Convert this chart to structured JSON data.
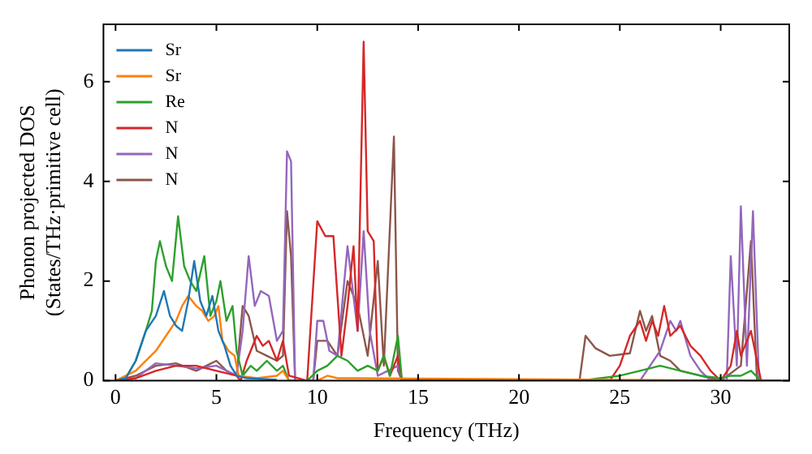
{
  "chart_data": {
    "type": "line",
    "xlabel": "Frequency (THz)",
    "ylabel": "Phonon projected DOS\n(States/THz·primitive cell)",
    "xlim": [
      -0.6,
      33.4
    ],
    "ylim": [
      0,
      7.15
    ],
    "xticks": [
      0,
      5,
      10,
      15,
      20,
      25,
      30
    ],
    "yticks": [
      0,
      2,
      4,
      6
    ],
    "grid": false,
    "legend": "top left",
    "marker": "none",
    "line_style": "solid",
    "series": [
      {
        "name": "Sr",
        "color": "#1f77b4",
        "x": [
          0,
          0.5,
          1,
          1.5,
          2,
          2.4,
          2.7,
          3,
          3.3,
          3.6,
          3.9,
          4.2,
          4.5,
          4.8,
          5.1,
          5.4,
          5.7,
          6,
          6.5,
          8
        ],
        "values": [
          0,
          0.05,
          0.4,
          1.0,
          1.3,
          1.8,
          1.3,
          1.1,
          1.0,
          1.6,
          2.4,
          1.6,
          1.3,
          1.7,
          1.0,
          0.7,
          0.3,
          0.1,
          0.05,
          0.02
        ]
      },
      {
        "name": "Sr",
        "color": "#ff7f0e",
        "x": [
          0,
          1,
          2,
          2.5,
          3,
          3.3,
          3.6,
          4,
          4.3,
          4.6,
          4.9,
          5.1,
          5.3,
          5.6,
          5.9,
          6.1,
          7,
          8,
          8.3,
          8.6,
          10,
          10.5,
          11,
          12,
          33
        ],
        "values": [
          0,
          0.2,
          0.6,
          0.9,
          1.2,
          1.5,
          1.7,
          1.5,
          1.4,
          1.2,
          1.3,
          1.5,
          0.8,
          0.6,
          0.5,
          0.1,
          0.05,
          0.1,
          0.2,
          0,
          0,
          0.1,
          0.05,
          0.05,
          0
        ]
      },
      {
        "name": "Re",
        "color": "#2ca02c",
        "x": [
          0,
          0.5,
          1,
          1.5,
          1.8,
          2,
          2.2,
          2.5,
          2.8,
          3.1,
          3.4,
          3.7,
          4,
          4.4,
          4.7,
          5,
          5.2,
          5.5,
          5.8,
          6,
          6.3,
          6.7,
          7,
          7.5,
          8,
          8.3,
          8.6,
          9.5,
          10,
          10.5,
          11,
          11.5,
          12,
          12.5,
          13,
          13.3,
          13.6,
          14,
          14.2,
          23,
          25,
          26,
          27,
          28,
          29,
          30,
          30.5,
          31,
          31.5,
          32,
          33
        ],
        "values": [
          0,
          0.05,
          0.4,
          1.0,
          1.4,
          2.4,
          2.8,
          2.3,
          2.0,
          3.3,
          2.3,
          2.0,
          1.8,
          2.5,
          1.3,
          1.6,
          2.0,
          1.2,
          1.5,
          0.6,
          0.1,
          0.3,
          0.2,
          0.4,
          0.2,
          0.3,
          0,
          0,
          0.2,
          0.3,
          0.5,
          0.4,
          0.2,
          0.3,
          0.2,
          0.5,
          0.1,
          0.9,
          0,
          0,
          0.1,
          0.2,
          0.3,
          0.2,
          0.1,
          0.05,
          0.1,
          0.1,
          0.2,
          0,
          0
        ]
      },
      {
        "name": "N",
        "color": "#d62728",
        "x": [
          0,
          1,
          2,
          3,
          4,
          5,
          6,
          6.2,
          6.5,
          7,
          7.3,
          7.6,
          8,
          8.3,
          8.6,
          9.5,
          10,
          10.4,
          10.8,
          11.2,
          11.5,
          11.8,
          12,
          12.3,
          12.5,
          12.8,
          13,
          13.3,
          13.6,
          14,
          14.2,
          24.5,
          25,
          25.5,
          26,
          26.3,
          26.6,
          26.9,
          27.2,
          27.5,
          28,
          28.5,
          29,
          29.5,
          30,
          30.5,
          30.8,
          31,
          31.5,
          32,
          33
        ],
        "values": [
          0,
          0.05,
          0.2,
          0.3,
          0.3,
          0.2,
          0.1,
          0,
          0.4,
          0.9,
          0.7,
          0.8,
          0.4,
          0.8,
          0.1,
          0,
          3.2,
          2.9,
          2.9,
          0.5,
          1.5,
          2.7,
          1.0,
          6.8,
          3.0,
          2.8,
          0.2,
          0.5,
          0.1,
          0.5,
          0,
          0,
          0.3,
          0.9,
          1.2,
          0.8,
          1.2,
          0.9,
          1.5,
          0.9,
          1.1,
          0.7,
          0.5,
          0.2,
          0,
          0.3,
          1.0,
          0.5,
          1.0,
          0,
          0
        ]
      },
      {
        "name": "N",
        "color": "#9467bd",
        "x": [
          0,
          1,
          2,
          3,
          4,
          5,
          6,
          6.3,
          6.6,
          6.9,
          7.2,
          7.6,
          8,
          8.3,
          8.5,
          8.7,
          8.9,
          9.8,
          10,
          10.3,
          10.6,
          11,
          11.5,
          12,
          12.3,
          12.6,
          13,
          13.5,
          14,
          14.2,
          26,
          26.5,
          27,
          27.5,
          27.8,
          28,
          28.5,
          29,
          29.5,
          30.3,
          30.5,
          30.8,
          31,
          31.3,
          31.6,
          31.9,
          33
        ],
        "values": [
          0,
          0.05,
          0.35,
          0.3,
          0.25,
          0.3,
          0.1,
          1.0,
          2.5,
          1.5,
          1.8,
          1.7,
          0.8,
          1.0,
          4.6,
          4.4,
          0,
          0,
          1.2,
          1.2,
          0.6,
          0.5,
          2.7,
          1.0,
          3.0,
          1.0,
          0.1,
          0.2,
          0.3,
          0,
          0,
          0.3,
          0.6,
          1.2,
          1.0,
          1.2,
          0.5,
          0.2,
          0,
          0,
          2.5,
          0.3,
          3.5,
          0.3,
          3.4,
          0,
          0
        ]
      },
      {
        "name": "N",
        "color": "#8c564b",
        "x": [
          0,
          1,
          2,
          3,
          4,
          4.5,
          5,
          5.5,
          6,
          6.3,
          6.6,
          7,
          7.5,
          8,
          8.3,
          8.5,
          8.7,
          8.9,
          9.8,
          10,
          10.5,
          11,
          11.5,
          12,
          12.5,
          13,
          13.3,
          13.8,
          14,
          14.2,
          23,
          23.3,
          23.8,
          24.5,
          25.5,
          26,
          26.3,
          26.6,
          27,
          27.5,
          28,
          29,
          30,
          31,
          31.5,
          31.8,
          33
        ],
        "values": [
          0,
          0.1,
          0.3,
          0.35,
          0.2,
          0.3,
          0.4,
          0.2,
          0.1,
          1.5,
          1.3,
          0.6,
          0.5,
          0.4,
          0.5,
          3.4,
          2.5,
          0,
          0,
          0.8,
          0.8,
          0.5,
          2.0,
          1.5,
          0.5,
          2.4,
          0.3,
          4.9,
          0.2,
          0,
          0,
          0.9,
          0.65,
          0.5,
          0.55,
          1.4,
          1.0,
          1.3,
          0.5,
          0.4,
          0.2,
          0.1,
          0,
          0.3,
          2.8,
          0,
          0
        ]
      }
    ]
  }
}
